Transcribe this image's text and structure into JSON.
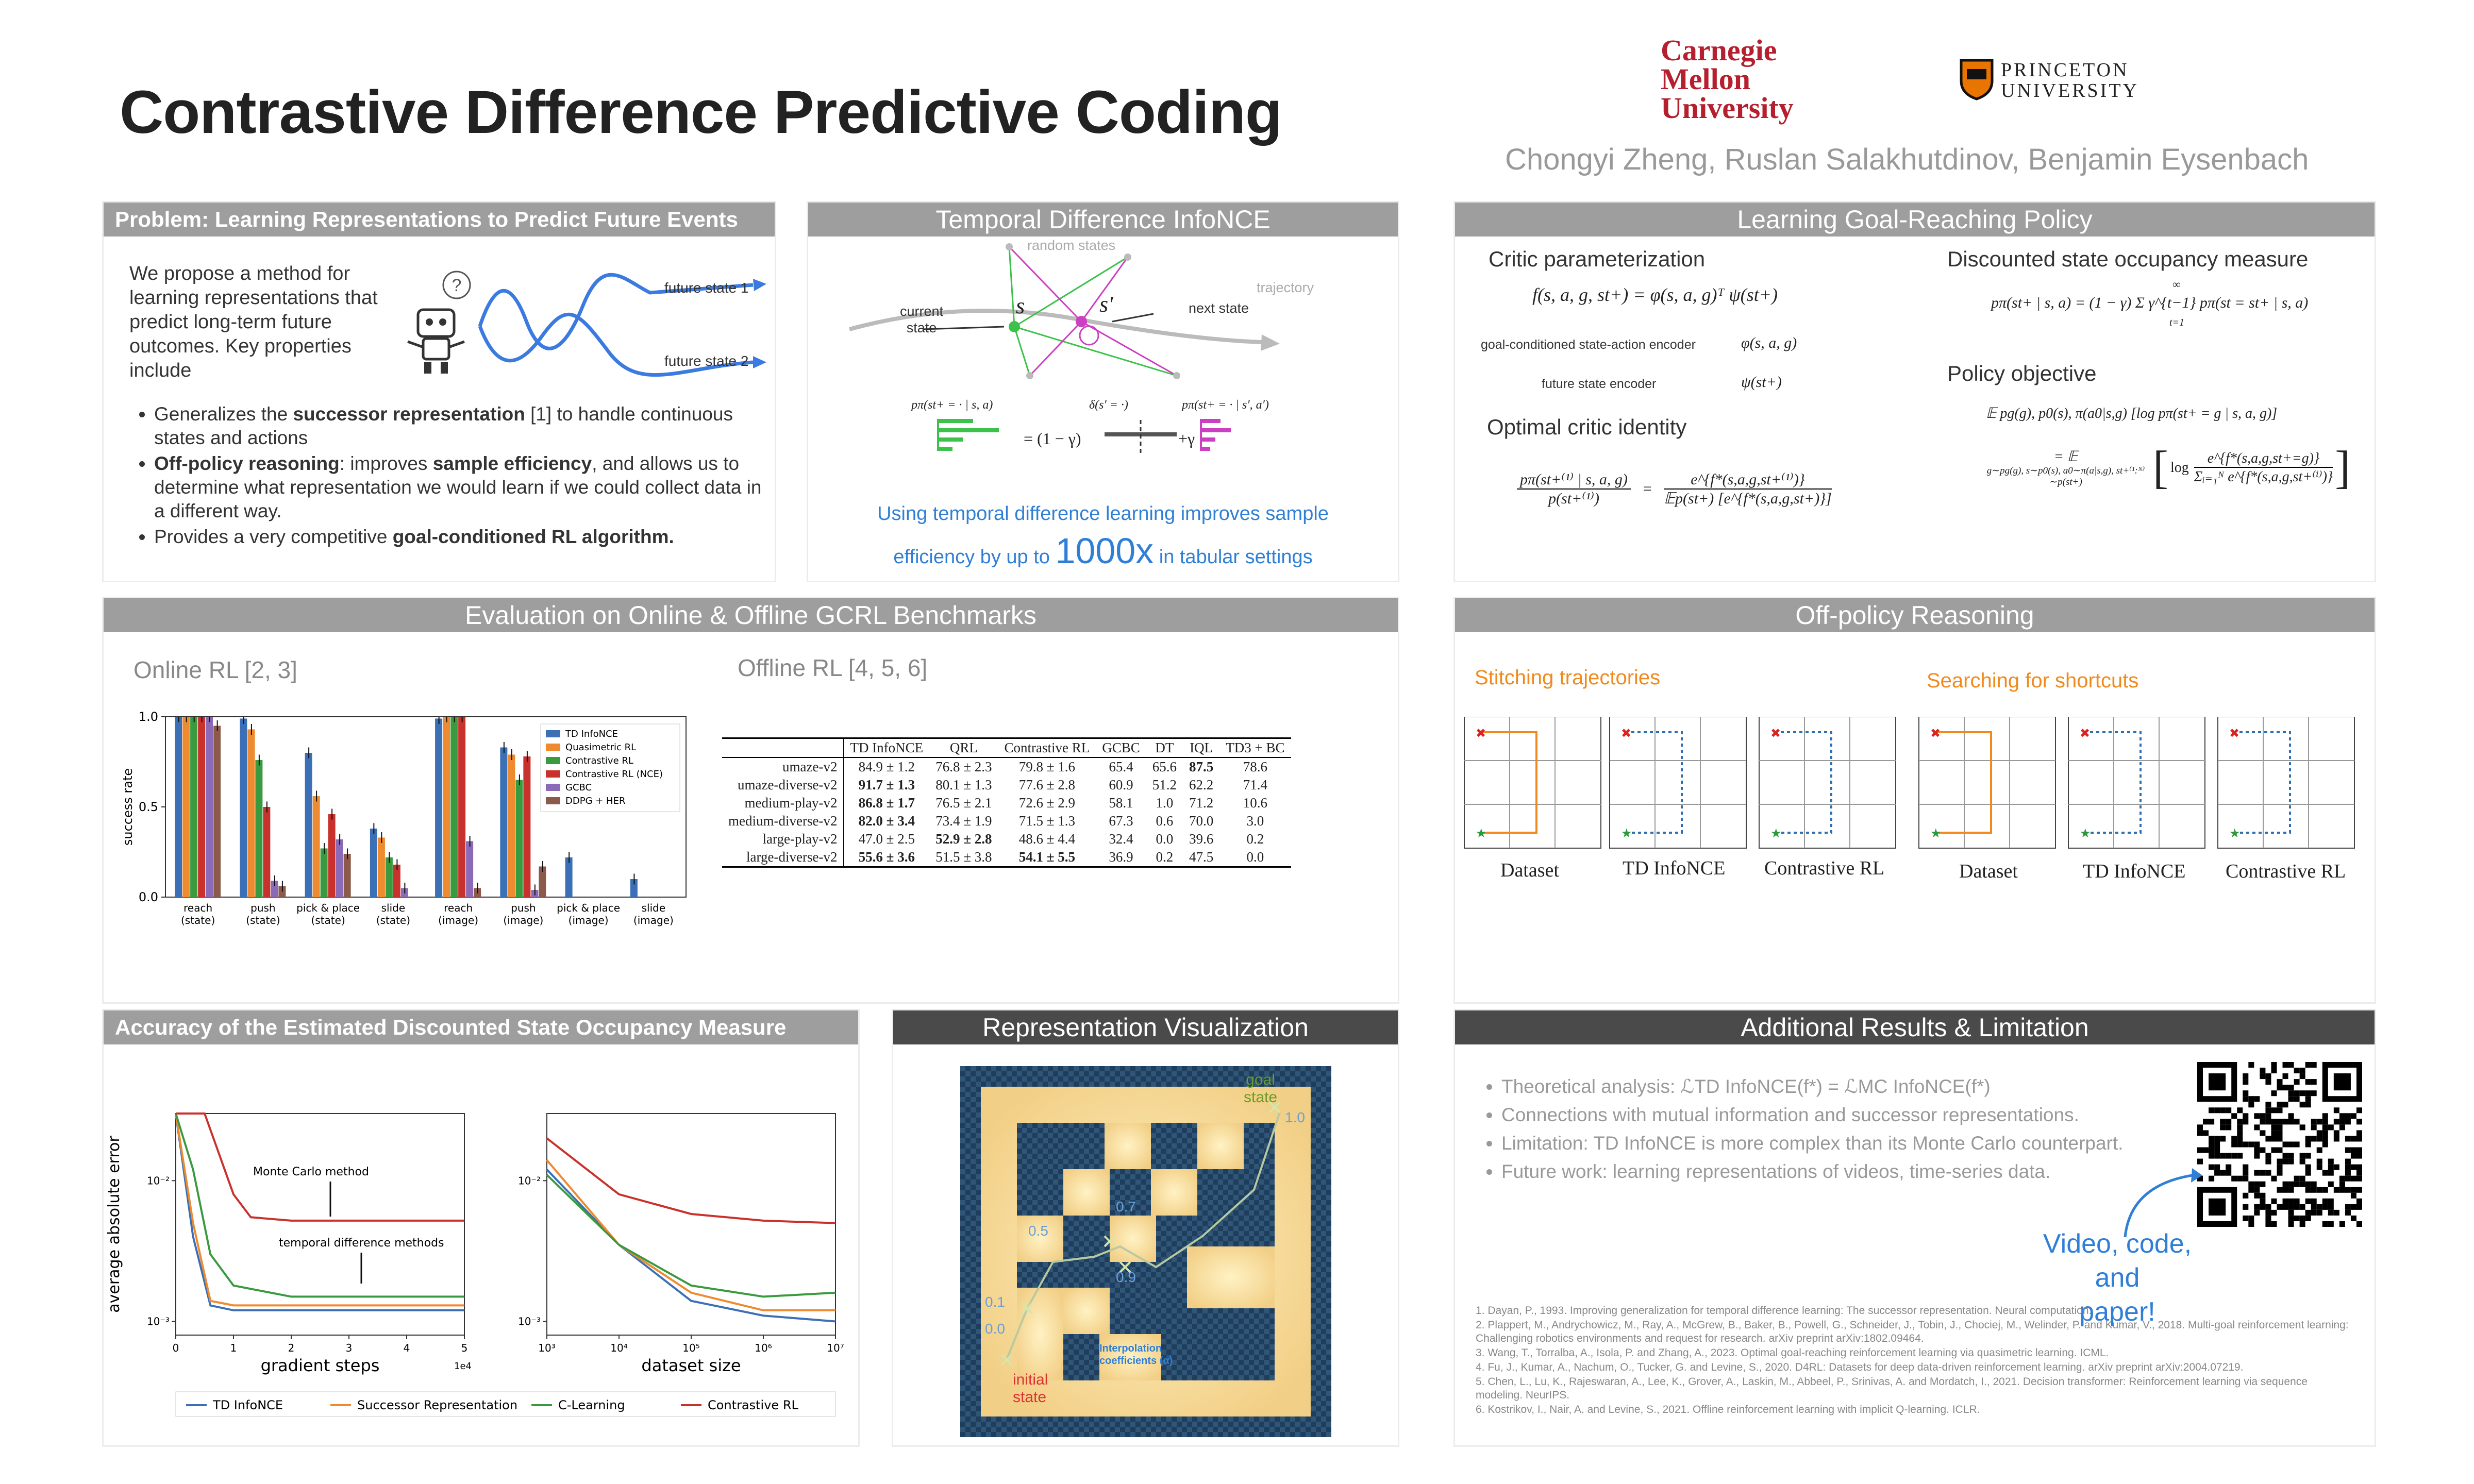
{
  "title": "Contrastive Difference Predictive Coding",
  "authors": "Chongyi Zheng, Ruslan Salakhutdinov, Benjamin Eysenbach",
  "logos": {
    "cmu": [
      "Carnegie",
      "Mellon",
      "University"
    ],
    "princeton": [
      "PRINCETON",
      "UNIVERSITY"
    ]
  },
  "problem": {
    "header": "Problem: Learning Representations to Predict Future Events",
    "intro": "We propose a method for learning representations that predict long-term future outcomes. Key properties include",
    "future1": "future state 1",
    "future2": "future state 2",
    "bullets": [
      [
        "Generalizes the ",
        "successor representation",
        " [1] to handle continuous states and actions"
      ],
      [
        "",
        "Off-policy reasoning",
        ": improves ",
        "sample efficiency",
        ", and allows us to determine what representation we would learn if we could collect data in a different way."
      ],
      [
        "Provides a very competitive ",
        "goal-conditioned RL algorithm."
      ]
    ]
  },
  "tdinfo": {
    "header": "Temporal Difference InfoNCE",
    "random_states": "random states",
    "trajectory": "trajectory",
    "current_state": [
      "current",
      "state"
    ],
    "next_state": "next state",
    "s": "s",
    "s_prime": "s′",
    "eq_left": "pπ(st+ = · | s, a)",
    "eq_mid": "δ(s′ = ·)",
    "eq_right": "pπ(st+ = · | s′, a′)",
    "eq_ops": [
      "= (1 − γ)",
      "+γ"
    ],
    "caption1": "Using temporal difference learning improves sample",
    "caption2a": "efficiency by up to ",
    "caption2b": "1000x",
    "caption2c": " in tabular settings"
  },
  "goal": {
    "header": "Learning Goal-Reaching Policy",
    "critic_param": "Critic parameterization",
    "critic_eq": "f(s, a, g, st+) = φ(s, a, g)ᵀ ψ(st+)",
    "enc1_label": "goal-conditioned state-action encoder",
    "enc1": "φ(s, a, g)",
    "enc2_label": "future state encoder",
    "enc2": "ψ(st+)",
    "optimal": "Optimal critic identity",
    "opt_num": "pπ(st+⁽¹⁾ | s, a, g)",
    "opt_den": "p(st+⁽¹⁾)",
    "opt_rnum": "e^{f*(s,a,g,st+⁽¹⁾)}",
    "opt_rden": "𝔼p(st+) [e^{f*(s,a,g,st+)}]",
    "dsom": "Discounted state occupancy measure",
    "dsom_eq": "pπ(st+ | s, a) = (1 − γ) Σ γ^{t−1} pπ(st = st+ | s, a)",
    "dsom_sum": "∞",
    "dsom_sub": "t=1",
    "policy_obj": "Policy objective",
    "pol1": "𝔼 pg(g), p0(s), π(a0|s,g) [log pπ(st+ = g | s, a, g)]",
    "pol2a": "= 𝔼",
    "pol2sub": "g∼pg(g), s∼p0(s), a0∼π(a|s,g), st+⁽¹:ᴺ⁾∼p(st+)",
    "pol2log": "log",
    "pol2num": "e^{f*(s,a,g,st+=g)}",
    "pol2den": "Σᵢ₌₁ᴺ e^{f*(s,a,g,st+⁽ⁱ⁾)}"
  },
  "eval": {
    "header": "Evaluation on Online & Offline GCRL Benchmarks",
    "online": "Online RL [2, 3]",
    "offline": "Offline RL [4, 5, 6]",
    "table_headers": [
      "",
      "TD InfoNCE",
      "QRL",
      "Contrastive RL",
      "GCBC",
      "DT",
      "IQL",
      "TD3 + BC"
    ],
    "table_rows": [
      [
        "umaze-v2",
        "84.9 ± 1.2",
        "76.8 ± 2.3",
        "79.8 ± 1.6",
        "65.4",
        "65.6",
        "87.5",
        "78.6"
      ],
      [
        "umaze-diverse-v2",
        "91.7 ± 1.3",
        "80.1 ± 1.3",
        "77.6 ± 2.8",
        "60.9",
        "51.2",
        "62.2",
        "71.4"
      ],
      [
        "medium-play-v2",
        "86.8 ± 1.7",
        "76.5 ± 2.1",
        "72.6 ± 2.9",
        "58.1",
        "1.0",
        "71.2",
        "10.6"
      ],
      [
        "medium-diverse-v2",
        "82.0 ± 3.4",
        "73.4 ± 1.9",
        "71.5 ± 1.3",
        "67.3",
        "0.6",
        "70.0",
        "3.0"
      ],
      [
        "large-play-v2",
        "47.0 ± 2.5",
        "52.9 ± 2.8",
        "48.6 ± 4.4",
        "32.4",
        "0.0",
        "39.6",
        "0.2"
      ],
      [
        "large-diverse-v2",
        "55.6 ± 3.6",
        "51.5 ± 3.8",
        "54.1 ± 5.5",
        "36.9",
        "0.2",
        "47.5",
        "0.0"
      ]
    ],
    "bold_cells": [
      [
        0,
        6
      ],
      [
        1,
        1
      ],
      [
        2,
        1
      ],
      [
        3,
        1
      ],
      [
        4,
        2
      ],
      [
        5,
        1
      ],
      [
        5,
        3
      ]
    ]
  },
  "chart_data": [
    {
      "type": "bar",
      "ylabel": "success rate",
      "ylim": [
        0,
        1.0
      ],
      "yticks": [
        "0.0",
        "0.5",
        "1.0"
      ],
      "categories": [
        "reach (state)",
        "push (state)",
        "pick & place (state)",
        "slide (state)",
        "reach (image)",
        "push (image)",
        "pick & place (image)",
        "slide (image)"
      ],
      "cat_lines": [
        [
          "reach",
          "(state)"
        ],
        [
          "push",
          "(state)"
        ],
        [
          "pick & place",
          "(state)"
        ],
        [
          "slide",
          "(state)"
        ],
        [
          "reach",
          "(image)"
        ],
        [
          "push",
          "(image)"
        ],
        [
          "pick & place",
          "(image)"
        ],
        [
          "slide",
          "(image)"
        ]
      ],
      "colors": [
        "#3b6fb6",
        "#ee8a2f",
        "#3a9a3f",
        "#c9312c",
        "#8b6bb8",
        "#8b5a4a"
      ],
      "series": [
        {
          "name": "TD InfoNCE",
          "values": [
            1.0,
            0.99,
            0.8,
            0.38,
            0.99,
            0.83,
            0.22,
            0.1
          ]
        },
        {
          "name": "Quasimetric RL",
          "values": [
            1.0,
            0.93,
            0.56,
            0.33,
            1.0,
            0.79,
            0.0,
            0.0
          ]
        },
        {
          "name": "Contrastive RL",
          "values": [
            1.0,
            0.76,
            0.27,
            0.22,
            1.0,
            0.65,
            0.0,
            0.0
          ]
        },
        {
          "name": "Contrastive RL (NCE)",
          "values": [
            1.0,
            0.5,
            0.46,
            0.18,
            1.0,
            0.78,
            0.0,
            0.0
          ]
        },
        {
          "name": "GCBC",
          "values": [
            1.0,
            0.09,
            0.32,
            0.05,
            0.31,
            0.04,
            0.0,
            0.0
          ]
        },
        {
          "name": "DDPG + HER",
          "values": [
            0.95,
            0.06,
            0.24,
            0.0,
            0.05,
            0.17,
            0.0,
            0.0
          ]
        }
      ]
    },
    {
      "type": "line",
      "ylabel": "average absolute error",
      "xlabel": "gradient steps",
      "xexp": "1e4",
      "xticks": [
        "0",
        "1",
        "2",
        "3",
        "4",
        "5"
      ],
      "yticks": [
        "10⁻²",
        "10⁻³"
      ],
      "annotations": [
        "Monte Carlo method",
        "temporal difference methods"
      ],
      "series": [
        {
          "name": "TD InfoNCE",
          "color": "#3b6fb6",
          "x": [
            0,
            0.3,
            0.6,
            1,
            2,
            3,
            4,
            5
          ],
          "y": [
            0.03,
            0.004,
            0.0013,
            0.0012,
            0.0012,
            0.0012,
            0.0012,
            0.0012
          ]
        },
        {
          "name": "Successor Representation",
          "color": "#ee8a2f",
          "x": [
            0,
            0.3,
            0.6,
            1,
            2,
            3,
            4,
            5
          ],
          "y": [
            0.03,
            0.005,
            0.0014,
            0.0013,
            0.0013,
            0.0013,
            0.0013,
            0.0013
          ]
        },
        {
          "name": "C-Learning",
          "color": "#3a9a3f",
          "x": [
            0,
            0.3,
            0.6,
            1,
            2,
            3,
            4,
            5
          ],
          "y": [
            0.03,
            0.012,
            0.003,
            0.0018,
            0.0015,
            0.0015,
            0.0015,
            0.0015
          ]
        },
        {
          "name": "Contrastive RL",
          "color": "#c9312c",
          "x": [
            0,
            0.5,
            1,
            1.3,
            2,
            3,
            4,
            5
          ],
          "y": [
            0.03,
            0.03,
            0.008,
            0.0055,
            0.0052,
            0.0052,
            0.0052,
            0.0052
          ]
        }
      ]
    },
    {
      "type": "line",
      "xlabel": "dataset size",
      "xticks": [
        "10³",
        "10⁴",
        "10⁵",
        "10⁶",
        "10⁷"
      ],
      "yticks": [
        "10⁻²",
        "10⁻³"
      ],
      "series": [
        {
          "name": "TD InfoNCE",
          "color": "#3b6fb6",
          "x": [
            3,
            4,
            5,
            6,
            7
          ],
          "y": [
            0.012,
            0.0035,
            0.0014,
            0.0011,
            0.001
          ]
        },
        {
          "name": "Successor Representation",
          "color": "#ee8a2f",
          "x": [
            3,
            4,
            5,
            6,
            7
          ],
          "y": [
            0.014,
            0.0035,
            0.0016,
            0.0012,
            0.0012
          ]
        },
        {
          "name": "C-Learning",
          "color": "#3a9a3f",
          "x": [
            3,
            4,
            5,
            6,
            7
          ],
          "y": [
            0.011,
            0.0035,
            0.0018,
            0.0015,
            0.0016
          ]
        },
        {
          "name": "Contrastive RL",
          "color": "#c9312c",
          "x": [
            3,
            4,
            5,
            6,
            7
          ],
          "y": [
            0.02,
            0.008,
            0.0058,
            0.0052,
            0.005
          ]
        }
      ]
    }
  ],
  "offpolicy": {
    "header": "Off-policy Reasoning",
    "stitch": "Stitching trajectories",
    "shortcut": "Searching for shortcuts",
    "labels": [
      "Dataset",
      "TD InfoNCE",
      "Contrastive RL"
    ]
  },
  "accuracy": {
    "header": "Accuracy of the Estimated Discounted State Occupancy Measure",
    "legend": [
      "TD InfoNCE",
      "Successor Representation",
      "C-Learning",
      "Contrastive RL"
    ]
  },
  "repviz": {
    "header": "Representation Visualization",
    "goal": [
      "goal",
      "state"
    ],
    "initial": [
      "initial",
      "state"
    ],
    "interp": [
      "Interpolation",
      "coefficients (α)"
    ],
    "nums": [
      "1.0",
      "0.7",
      "0.5",
      "0.9",
      "0.1",
      "0.0"
    ]
  },
  "additional": {
    "header": "Additional Results & Limitation",
    "items": [
      "Theoretical analysis: ℒTD InfoNCE(f*) = ℒMC InfoNCE(f*)",
      "Connections with mutual information and successor representations.",
      "Limitation: TD InfoNCE is more complex than its Monte Carlo counterpart.",
      "Future work: learning representations of videos, time-series data."
    ],
    "video": [
      "Video, code, and",
      "paper!"
    ],
    "refs": [
      "1.   Dayan, P., 1993. Improving generalization for temporal difference learning: The successor representation. Neural computation.",
      "2.   Plappert, M., Andrychowicz, M., Ray, A., McGrew, B., Baker, B., Powell, G., Schneider, J., Tobin, J., Chociej, M., Welinder, P. and Kumar, V., 2018. Multi-goal reinforcement learning: Challenging robotics environments and request for research. arXiv preprint arXiv:1802.09464.",
      "3.   Wang, T., Torralba, A., Isola, P. and Zhang, A., 2023. Optimal goal-reaching reinforcement learning via quasimetric learning. ICML.",
      "4.   Fu, J., Kumar, A., Nachum, O., Tucker, G. and Levine, S., 2020. D4RL: Datasets for deep data-driven reinforcement learning. arXiv preprint arXiv:2004.07219.",
      "5.   Chen, L., Lu, K., Rajeswaran, A., Lee, K., Grover, A., Laskin, M., Abbeel, P., Srinivas, A. and Mordatch, I., 2021. Decision transformer: Reinforcement learning via sequence modeling. NeurIPS.",
      "6.   Kostrikov, I., Nair, A. and Levine, S., 2021. Offline reinforcement learning with implicit Q-learning. ICLR."
    ]
  }
}
